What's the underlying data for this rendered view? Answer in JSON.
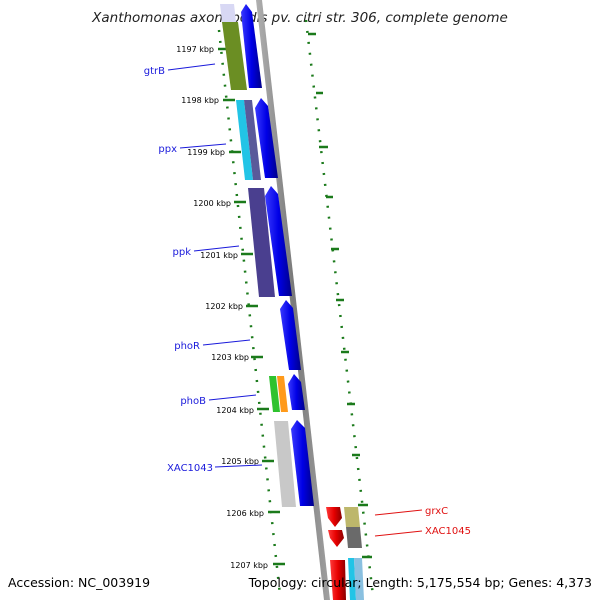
{
  "header": {
    "title": "Xanthomonas axonopodis pv. citri str. 306, complete genome"
  },
  "footer": {
    "accession": "Accession: NC_003919",
    "summary": "Topology: circular; Length: 5,175,554 bp; Genes: 4,373"
  },
  "ticks": [
    "1197 kbp",
    "1198 kbp",
    "1199 kbp",
    "1200 kbp",
    "1201 kbp",
    "1202 kbp",
    "1203 kbp",
    "1204 kbp",
    "1205 kbp",
    "1206 kbp",
    "1207 kbp"
  ],
  "gene_labels": [
    {
      "text": "gtrB",
      "color": "#1a1adb"
    },
    {
      "text": "ppx",
      "color": "#1a1adb"
    },
    {
      "text": "ppk",
      "color": "#1a1adb"
    },
    {
      "text": "phoR",
      "color": "#1a1adb"
    },
    {
      "text": "phoB",
      "color": "#1a1adb"
    },
    {
      "text": "XAC1043",
      "color": "#1a1adb"
    },
    {
      "text": "grxC",
      "color": "#e01010"
    },
    {
      "text": "XAC1045",
      "color": "#e01010"
    }
  ],
  "colors": {
    "backbone": "#8a8a8a",
    "tick": "#1b7a1b",
    "forward_gene": "#0000ee",
    "reverse_gene": "#ee0000"
  }
}
